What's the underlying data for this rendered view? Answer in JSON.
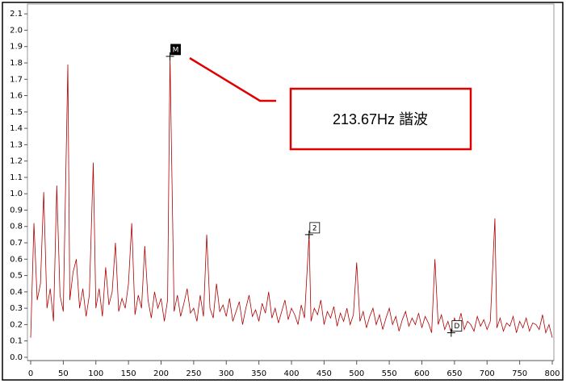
{
  "chart_data": {
    "type": "line",
    "x": [
      0,
      5,
      10,
      15,
      20,
      25,
      30,
      35,
      40,
      45,
      50,
      57,
      60,
      65,
      70,
      75,
      80,
      85,
      90,
      96,
      100,
      105,
      110,
      115,
      120,
      125,
      130,
      135,
      140,
      145,
      150,
      155,
      160,
      165,
      170,
      175,
      180,
      185,
      190,
      195,
      200,
      205,
      210,
      213.67,
      220,
      225,
      230,
      235,
      240,
      245,
      250,
      255,
      260,
      265,
      270,
      275,
      280,
      285,
      290,
      295,
      300,
      305,
      310,
      315,
      320,
      325,
      330,
      335,
      340,
      345,
      350,
      355,
      360,
      365,
      370,
      375,
      380,
      385,
      390,
      395,
      400,
      405,
      410,
      415,
      420,
      427,
      430,
      435,
      440,
      445,
      450,
      455,
      460,
      465,
      470,
      475,
      480,
      485,
      490,
      495,
      500,
      505,
      510,
      515,
      520,
      525,
      530,
      535,
      540,
      545,
      550,
      555,
      560,
      565,
      570,
      575,
      580,
      585,
      590,
      595,
      600,
      605,
      610,
      615,
      620,
      625,
      630,
      635,
      640,
      645,
      650,
      655,
      660,
      665,
      670,
      675,
      680,
      685,
      690,
      695,
      700,
      705,
      712,
      715,
      720,
      725,
      730,
      735,
      740,
      745,
      750,
      755,
      760,
      765,
      770,
      775,
      780,
      785,
      790,
      795,
      800
    ],
    "series": [
      {
        "color": "#b00000",
        "values": [
          0.12,
          0.82,
          0.35,
          0.45,
          1.01,
          0.3,
          0.42,
          0.22,
          1.05,
          0.38,
          0.28,
          1.79,
          0.35,
          0.52,
          0.6,
          0.3,
          0.42,
          0.25,
          0.38,
          1.19,
          0.3,
          0.42,
          0.25,
          0.55,
          0.32,
          0.4,
          0.7,
          0.28,
          0.36,
          0.3,
          0.45,
          0.82,
          0.26,
          0.38,
          0.3,
          0.68,
          0.35,
          0.24,
          0.4,
          0.3,
          0.36,
          0.22,
          0.35,
          1.84,
          0.28,
          0.38,
          0.25,
          0.33,
          0.42,
          0.27,
          0.3,
          0.22,
          0.38,
          0.25,
          0.75,
          0.3,
          0.24,
          0.45,
          0.28,
          0.32,
          0.25,
          0.36,
          0.22,
          0.28,
          0.34,
          0.2,
          0.3,
          0.38,
          0.25,
          0.29,
          0.22,
          0.33,
          0.27,
          0.4,
          0.24,
          0.3,
          0.21,
          0.28,
          0.35,
          0.23,
          0.3,
          0.26,
          0.2,
          0.32,
          0.24,
          0.75,
          0.22,
          0.3,
          0.26,
          0.35,
          0.2,
          0.28,
          0.24,
          0.31,
          0.19,
          0.27,
          0.22,
          0.3,
          0.2,
          0.26,
          0.58,
          0.22,
          0.28,
          0.18,
          0.25,
          0.3,
          0.2,
          0.26,
          0.17,
          0.24,
          0.3,
          0.2,
          0.25,
          0.16,
          0.23,
          0.28,
          0.19,
          0.24,
          0.2,
          0.27,
          0.18,
          0.25,
          0.21,
          0.15,
          0.6,
          0.2,
          0.26,
          0.17,
          0.22,
          0.15,
          0.24,
          0.19,
          0.27,
          0.17,
          0.22,
          0.2,
          0.16,
          0.25,
          0.19,
          0.23,
          0.17,
          0.22,
          0.85,
          0.18,
          0.24,
          0.16,
          0.21,
          0.19,
          0.25,
          0.15,
          0.22,
          0.18,
          0.24,
          0.16,
          0.21,
          0.2,
          0.17,
          0.26,
          0.15,
          0.2,
          0.12
        ]
      }
    ],
    "xlim": [
      0,
      800
    ],
    "xticks": [
      0,
      50,
      100,
      150,
      200,
      250,
      300,
      350,
      400,
      450,
      500,
      550,
      600,
      650,
      700,
      750,
      800
    ],
    "ylim": [
      -0.02,
      2.16
    ],
    "yticks": [
      {
        "value": 0,
        "label": "0.0"
      },
      0.1,
      0.2,
      0.3,
      0.4,
      0.5,
      0.6,
      0.7,
      0.8,
      0.9,
      {
        "value": 1,
        "label": "1.0"
      },
      1.1,
      1.2,
      1.3,
      1.4,
      1.5,
      1.6,
      1.7,
      1.8,
      1.9,
      {
        "value": 2,
        "label": "2.0"
      },
      2.1
    ],
    "markers": [
      {
        "label": "M",
        "x": 213.67,
        "y": 1.84,
        "style": "filled"
      },
      {
        "label": "2",
        "x": 427,
        "y": 0.75,
        "style": "outline"
      },
      {
        "label": "D",
        "x": 645,
        "y": 0.15,
        "style": "outline"
      }
    ],
    "callout": "213.67Hz 諧波"
  }
}
